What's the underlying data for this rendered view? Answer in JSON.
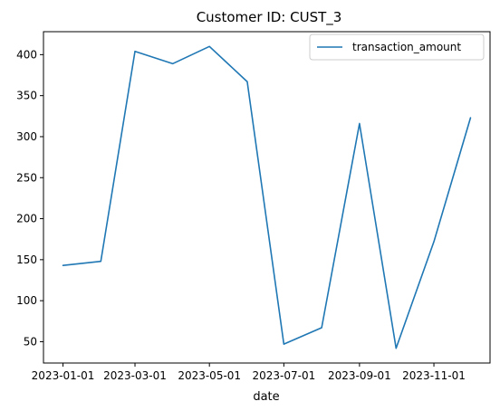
{
  "chart_data": {
    "type": "line",
    "title": "Customer ID: CUST_3",
    "xlabel": "date",
    "ylabel": "",
    "x": [
      "2023-01-01",
      "2023-02-01",
      "2023-03-01",
      "2023-04-01",
      "2023-05-01",
      "2023-06-01",
      "2023-07-01",
      "2023-08-01",
      "2023-09-01",
      "2023-10-01",
      "2023-11-01",
      "2023-12-01"
    ],
    "series": [
      {
        "name": "transaction_amount",
        "color": "#1f77b4",
        "values": [
          143,
          148,
          404,
          389,
          410,
          367,
          47,
          67,
          316,
          42,
          172,
          323
        ]
      }
    ],
    "x_ticks": [
      "2023-01-01",
      "2023-03-01",
      "2023-05-01",
      "2023-07-01",
      "2023-09-01",
      "2023-11-01"
    ],
    "y_ticks": [
      50,
      100,
      150,
      200,
      250,
      300,
      350,
      400
    ],
    "xlim": [
      "2022-12-16",
      "2023-12-17"
    ],
    "ylim": [
      24,
      428
    ],
    "grid": false,
    "legend_position": "top-right"
  }
}
